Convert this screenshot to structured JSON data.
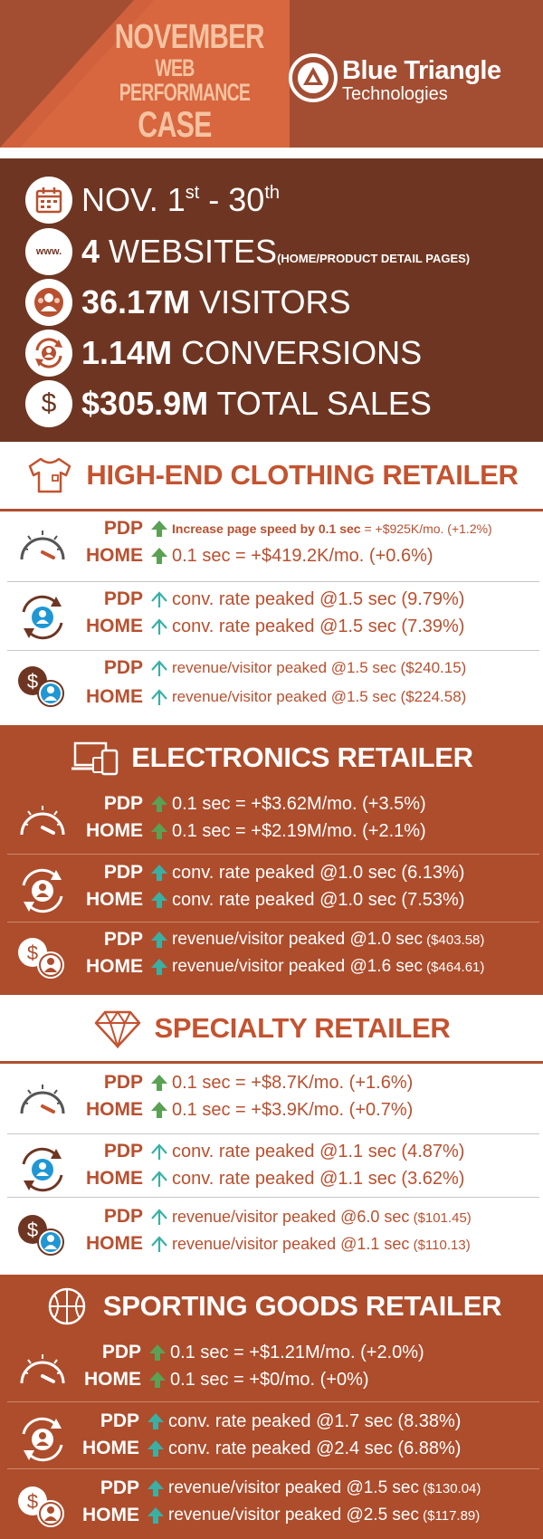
{
  "header": {
    "title_line1": "NOVEMBER",
    "title_line2": "WEB PERFORMANCE",
    "title_line3": "CASE STUDY",
    "brand_name": "Blue Triangle",
    "brand_sub": "Technologies"
  },
  "stats": {
    "dates": {
      "prefix": "NOV. 1",
      "sup1": "st",
      "mid": " - 30",
      "sup2": "th",
      "icon": "calendar-icon"
    },
    "websites": {
      "value": "4",
      "label": " WEBSITES",
      "note": "(HOME/PRODUCT DETAIL PAGES)",
      "icon_text": "www."
    },
    "visitors": {
      "value": "36.17M",
      "label": " VISITORS",
      "icon": "visitors-icon"
    },
    "conversions": {
      "value": "1.14M",
      "label": " CONVERSIONS",
      "icon": "conversion-icon"
    },
    "sales": {
      "value": "$305.9M",
      "label": " TOTAL SALES",
      "icon": "dollar-icon"
    }
  },
  "sections": [
    {
      "title": "HIGH-END CLOTHING RETAILER",
      "icon": "tshirt-icon",
      "speed": {
        "pdp": {
          "label": "PDP",
          "text_bold": "Increase page speed by 0.1 sec",
          "text": " = +$925K/mo. (+1.2%)"
        },
        "home": {
          "label": "HOME",
          "text": "0.1 sec  =  +$419.2K/mo. (+0.6%)"
        }
      },
      "conv": {
        "pdp": {
          "label": "PDP",
          "text": "conv. rate peaked @1.5 sec (9.79%)"
        },
        "home": {
          "label": "HOME",
          "text": "conv. rate peaked @1.5 sec (7.39%)"
        }
      },
      "rev": {
        "pdp": {
          "label": "PDP",
          "text": "revenue/visitor peaked @1.5 sec ($240.15)"
        },
        "home": {
          "label": "HOME",
          "text": "revenue/visitor peaked @1.5 sec ($224.58)"
        }
      }
    },
    {
      "title": "ELECTRONICS RETAILER",
      "icon": "devices-icon",
      "speed": {
        "pdp": {
          "label": "PDP",
          "text": "0.1 sec =  +$3.62M/mo. (+3.5%)"
        },
        "home": {
          "label": "HOME",
          "text": "0.1 sec  = +$2.19M/mo.  (+2.1%)"
        }
      },
      "conv": {
        "pdp": {
          "label": "PDP",
          "text": "conv. rate peaked @1.0 sec (6.13%)"
        },
        "home": {
          "label": "HOME",
          "text": "conv. rate peaked @1.0 sec (7.53%)"
        }
      },
      "rev": {
        "pdp": {
          "label": "PDP",
          "text_main": "revenue/visitor peaked @1.0 sec",
          "text_small": " ($403.58)"
        },
        "home": {
          "label": "HOME",
          "text_main": "revenue/visitor peaked @1.6 sec",
          "text_small": " ($464.61)"
        }
      }
    },
    {
      "title": "SPECIALTY RETAILER",
      "icon": "diamond-icon",
      "speed": {
        "pdp": {
          "label": "PDP",
          "text": "0.1 sec = +$8.7K/mo. (+1.6%)"
        },
        "home": {
          "label": "HOME",
          "text": "0.1 sec = +$3.9K/mo. (+0.7%)"
        }
      },
      "conv": {
        "pdp": {
          "label": "PDP",
          "text": "conv. rate peaked @1.1 sec (4.87%)"
        },
        "home": {
          "label": "HOME",
          "text": "conv. rate peaked @1.1 sec (3.62%)"
        }
      },
      "rev": {
        "pdp": {
          "label": "PDP",
          "text_main": "revenue/visitor peaked @6.0 sec",
          "text_small": " ($101.45)"
        },
        "home": {
          "label": "HOME",
          "text_main": "revenue/visitor peaked @1.1 sec",
          "text_small": " ($110.13)"
        }
      }
    },
    {
      "title": "SPORTING GOODS RETAILER",
      "icon": "basketball-icon",
      "speed": {
        "pdp": {
          "label": "PDP",
          "text": "0.1 sec =  +$1.21M/mo.  (+2.0%)"
        },
        "home": {
          "label": "HOME",
          "text": "0.1 sec = +$0/mo.  (+0%)"
        }
      },
      "conv": {
        "pdp": {
          "label": "PDP",
          "text": "conv. rate peaked @1.7 sec (8.38%)"
        },
        "home": {
          "label": "HOME",
          "text": "conv. rate peaked @2.4 sec (6.88%)"
        }
      },
      "rev": {
        "pdp": {
          "label": "PDP",
          "text_main": "revenue/visitor peaked @1.5 sec",
          "text_small": " ($130.04)"
        },
        "home": {
          "label": "HOME",
          "text_main": "revenue/visitor peaked @2.5 sec",
          "text_small": " ($117.89)"
        }
      }
    }
  ],
  "colors": {
    "header_bg": "#a34e33",
    "stats_bg": "#6e3622",
    "dark_band": "#ad4d2c",
    "accent_text": "#c4532f",
    "arrow_green": "#5aa153",
    "arrow_teal": "#3ab0a5",
    "icon_blue": "#1f97d4"
  }
}
